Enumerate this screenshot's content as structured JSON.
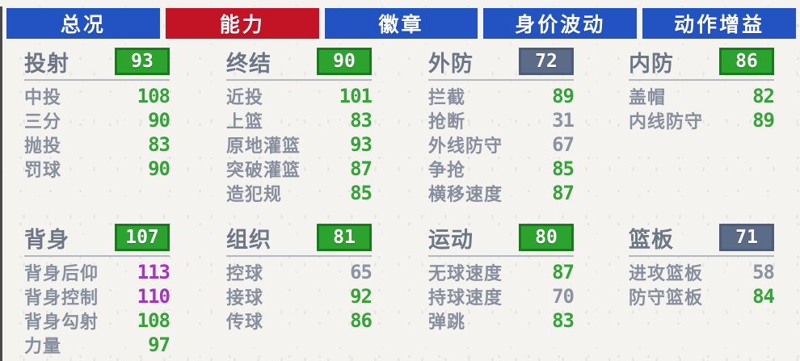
{
  "colors": {
    "tab_blue": "#2353c3",
    "tab_active_red": "#c31425",
    "badge_green": "#2ca32e",
    "badge_green_border": "#177a1b",
    "badge_slate": "#5c6c88",
    "badge_slate_border": "#4e5d77",
    "value_green": "#35a338",
    "value_gray": "#8b93a2",
    "value_purple": "#a433c0"
  },
  "tabs": [
    {
      "id": "overview",
      "label": "总况",
      "active": false
    },
    {
      "id": "ability",
      "label": "能力",
      "active": true
    },
    {
      "id": "badges",
      "label": "徽章",
      "active": false
    },
    {
      "id": "value-fluctuation",
      "label": "身价波动",
      "active": false
    },
    {
      "id": "move-boost",
      "label": "动作增益",
      "active": false
    }
  ],
  "stat_columns": [
    {
      "groups": [
        {
          "id": "shooting",
          "title": "投射",
          "overall": "93",
          "badge_tone": "green",
          "rows": [
            {
              "label": "中投",
              "value": "108",
              "tone": "green"
            },
            {
              "label": "三分",
              "value": "90",
              "tone": "green"
            },
            {
              "label": "抛投",
              "value": "83",
              "tone": "green"
            },
            {
              "label": "罚球",
              "value": "90",
              "tone": "green"
            }
          ]
        },
        {
          "id": "post",
          "title": "背身",
          "overall": "107",
          "badge_tone": "green",
          "rows": [
            {
              "label": "背身后仰",
              "value": "113",
              "tone": "purple"
            },
            {
              "label": "背身控制",
              "value": "110",
              "tone": "purple"
            },
            {
              "label": "背身勾射",
              "value": "108",
              "tone": "green"
            },
            {
              "label": "力量",
              "value": "97",
              "tone": "green"
            }
          ]
        }
      ]
    },
    {
      "groups": [
        {
          "id": "finishing",
          "title": "终结",
          "overall": "90",
          "badge_tone": "green",
          "rows": [
            {
              "label": "近投",
              "value": "101",
              "tone": "green"
            },
            {
              "label": "上篮",
              "value": "83",
              "tone": "green"
            },
            {
              "label": "原地灌篮",
              "value": "93",
              "tone": "green"
            },
            {
              "label": "突破灌篮",
              "value": "87",
              "tone": "green"
            },
            {
              "label": "造犯规",
              "value": "85",
              "tone": "green"
            }
          ]
        },
        {
          "id": "playmaking",
          "title": "组织",
          "overall": "81",
          "badge_tone": "green",
          "rows": [
            {
              "label": "控球",
              "value": "65",
              "tone": "gray"
            },
            {
              "label": "接球",
              "value": "92",
              "tone": "green"
            },
            {
              "label": "传球",
              "value": "86",
              "tone": "green"
            }
          ]
        }
      ]
    },
    {
      "groups": [
        {
          "id": "perimeter-defense",
          "title": "外防",
          "overall": "72",
          "badge_tone": "slate",
          "rows": [
            {
              "label": "拦截",
              "value": "89",
              "tone": "green"
            },
            {
              "label": "抢断",
              "value": "31",
              "tone": "gray"
            },
            {
              "label": "外线防守",
              "value": "67",
              "tone": "gray"
            },
            {
              "label": "争抢",
              "value": "85",
              "tone": "green"
            },
            {
              "label": "横移速度",
              "value": "87",
              "tone": "green"
            }
          ]
        },
        {
          "id": "athleticism",
          "title": "运动",
          "overall": "80",
          "badge_tone": "green",
          "rows": [
            {
              "label": "无球速度",
              "value": "87",
              "tone": "green"
            },
            {
              "label": "持球速度",
              "value": "70",
              "tone": "gray"
            },
            {
              "label": "弹跳",
              "value": "83",
              "tone": "green"
            }
          ]
        }
      ]
    },
    {
      "groups": [
        {
          "id": "interior-defense",
          "title": "内防",
          "overall": "86",
          "badge_tone": "green",
          "rows": [
            {
              "label": "盖帽",
              "value": "82",
              "tone": "green"
            },
            {
              "label": "内线防守",
              "value": "89",
              "tone": "green"
            }
          ]
        },
        {
          "id": "rebounding",
          "title": "篮板",
          "overall": "71",
          "badge_tone": "slate",
          "rows": [
            {
              "label": "进攻篮板",
              "value": "58",
              "tone": "gray"
            },
            {
              "label": "防守篮板",
              "value": "84",
              "tone": "green"
            }
          ]
        }
      ]
    }
  ]
}
